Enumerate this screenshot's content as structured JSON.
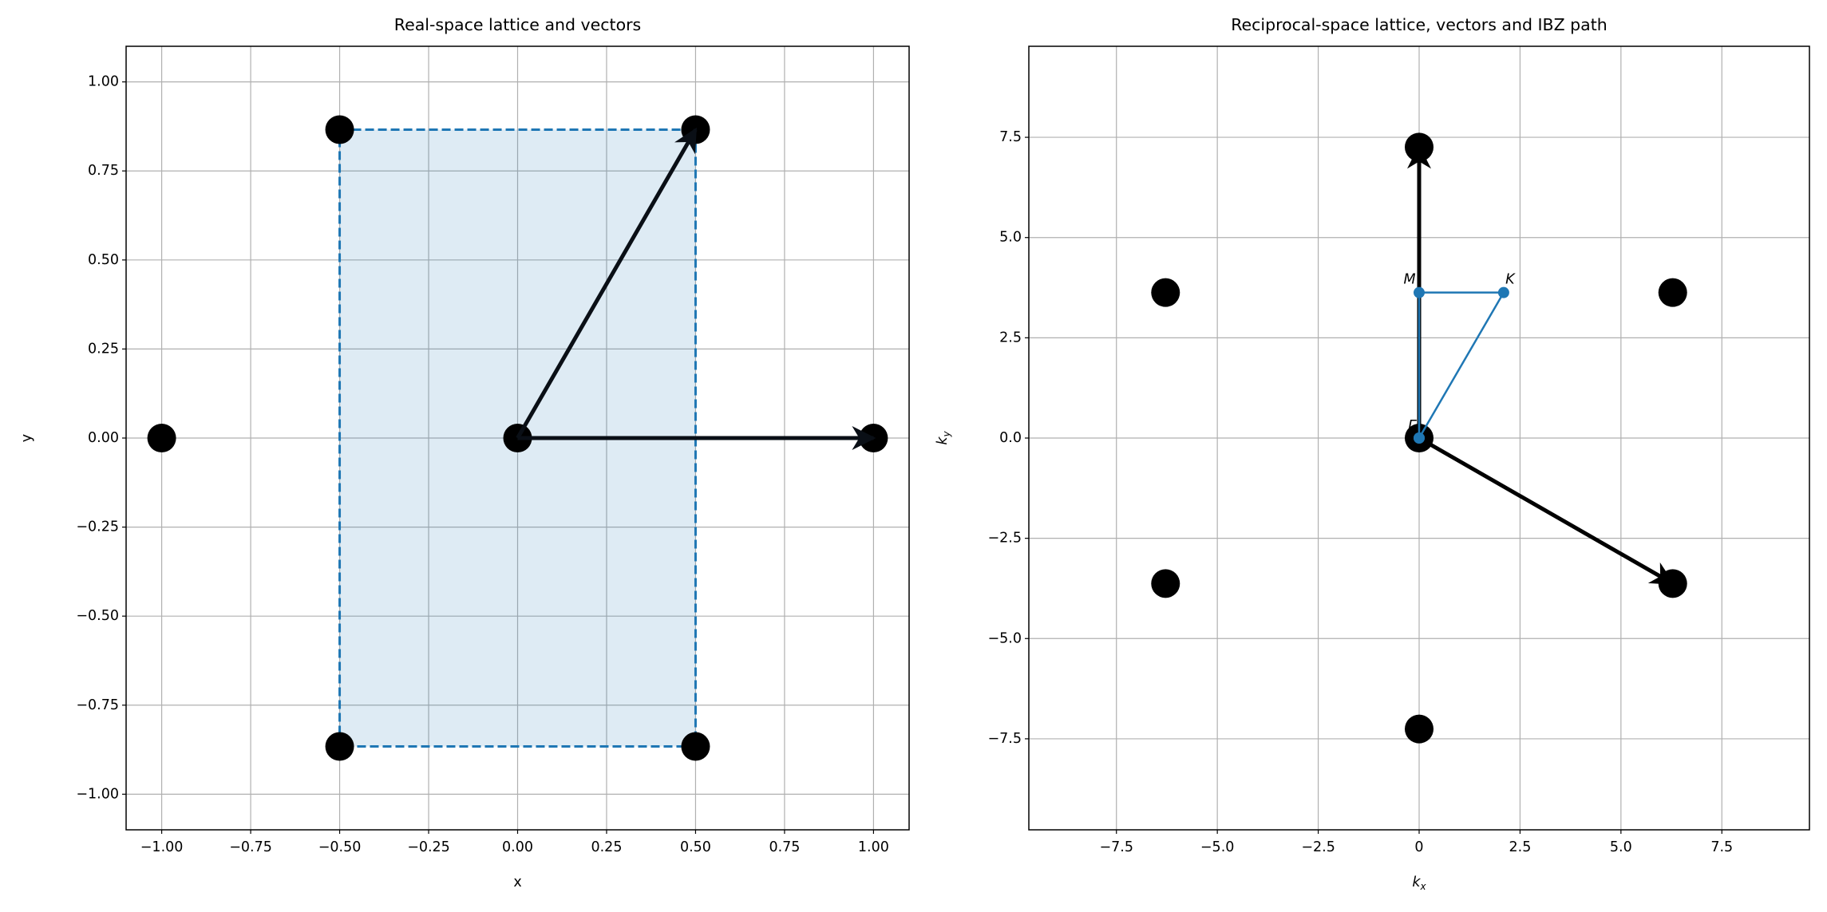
{
  "chart_data": [
    {
      "type": "scatter",
      "title": "Real-space lattice and vectors",
      "xlabel": "x",
      "ylabel": "y",
      "x": [
        -1,
        -0.5,
        0.5,
        0,
        1,
        -0.5,
        0.5
      ],
      "y": [
        0,
        0.866,
        0.866,
        0,
        0,
        -0.866,
        -0.866
      ],
      "color": "#000000",
      "vectors": [
        {
          "from": [
            0,
            0
          ],
          "to": [
            1,
            0
          ]
        },
        {
          "from": [
            0,
            0
          ],
          "to": [
            0.5,
            0.866
          ]
        }
      ],
      "vector_color": "#0a0f16",
      "cell": {
        "x": [
          -0.5,
          0.5
        ],
        "y": [
          -0.866,
          0.866
        ],
        "color": "#1f77b4"
      },
      "xlim": [
        -1.1,
        1.1
      ],
      "ylim": [
        -1.1,
        1.1
      ],
      "xticks": [
        {
          "value": -1,
          "label": "−1.00"
        },
        {
          "value": -0.75,
          "label": "−0.75"
        },
        {
          "value": -0.5,
          "label": "−0.50"
        },
        {
          "value": -0.25,
          "label": "−0.25"
        },
        {
          "value": 0,
          "label": "0.00"
        },
        {
          "value": 0.25,
          "label": "0.25"
        },
        {
          "value": 0.5,
          "label": "0.50"
        },
        {
          "value": 0.75,
          "label": "0.75"
        },
        {
          "value": 1,
          "label": "1.00"
        }
      ],
      "yticks": [
        {
          "value": -1,
          "label": "−1.00"
        },
        {
          "value": -0.75,
          "label": "−0.75"
        },
        {
          "value": -0.5,
          "label": "−0.50"
        },
        {
          "value": -0.25,
          "label": "−0.25"
        },
        {
          "value": 0,
          "label": "0.00"
        },
        {
          "value": 0.25,
          "label": "0.25"
        },
        {
          "value": 0.5,
          "label": "0.50"
        },
        {
          "value": 0.75,
          "label": "0.75"
        },
        {
          "value": 1,
          "label": "1.00"
        }
      ],
      "grid": true
    },
    {
      "type": "scatter",
      "title": "Reciprocal-space lattice, vectors and IBZ path",
      "xlabel": {
        "text": "k",
        "sub": "x"
      },
      "ylabel": {
        "text": "k",
        "sub": "y"
      },
      "x": [
        0,
        0,
        6.283,
        -6.283,
        6.283,
        -6.283,
        0
      ],
      "y": [
        7.255,
        -7.255,
        3.628,
        3.628,
        -3.628,
        -3.628,
        0
      ],
      "color": "#000000",
      "vectors": [
        {
          "from": [
            0,
            0
          ],
          "to": [
            6.283,
            -3.628
          ]
        },
        {
          "from": [
            0,
            0
          ],
          "to": [
            0,
            7.255
          ]
        }
      ],
      "vector_color": "#000000",
      "path": {
        "x": [
          0,
          0,
          2.094,
          0
        ],
        "y": [
          0,
          3.628,
          3.628,
          0
        ],
        "labels": [
          "Γ",
          "M",
          "K"
        ],
        "color": "#1f77b4"
      },
      "xlim": [
        -9.67,
        9.67
      ],
      "ylim": [
        -9.77,
        9.77
      ],
      "xticks": [
        {
          "value": -7.5,
          "label": "−7.5"
        },
        {
          "value": -5,
          "label": "−5.0"
        },
        {
          "value": -2.5,
          "label": "−2.5"
        },
        0,
        2.5,
        {
          "value": 5,
          "label": "5.0"
        },
        7.5
      ],
      "yticks": [
        {
          "value": -7.5,
          "label": "−7.5"
        },
        {
          "value": -5,
          "label": "−5.0"
        },
        {
          "value": -2.5,
          "label": "−2.5"
        },
        {
          "value": 0,
          "label": "0.0"
        },
        2.5,
        {
          "value": 5,
          "label": "5.0"
        },
        7.5
      ],
      "grid": true
    }
  ]
}
